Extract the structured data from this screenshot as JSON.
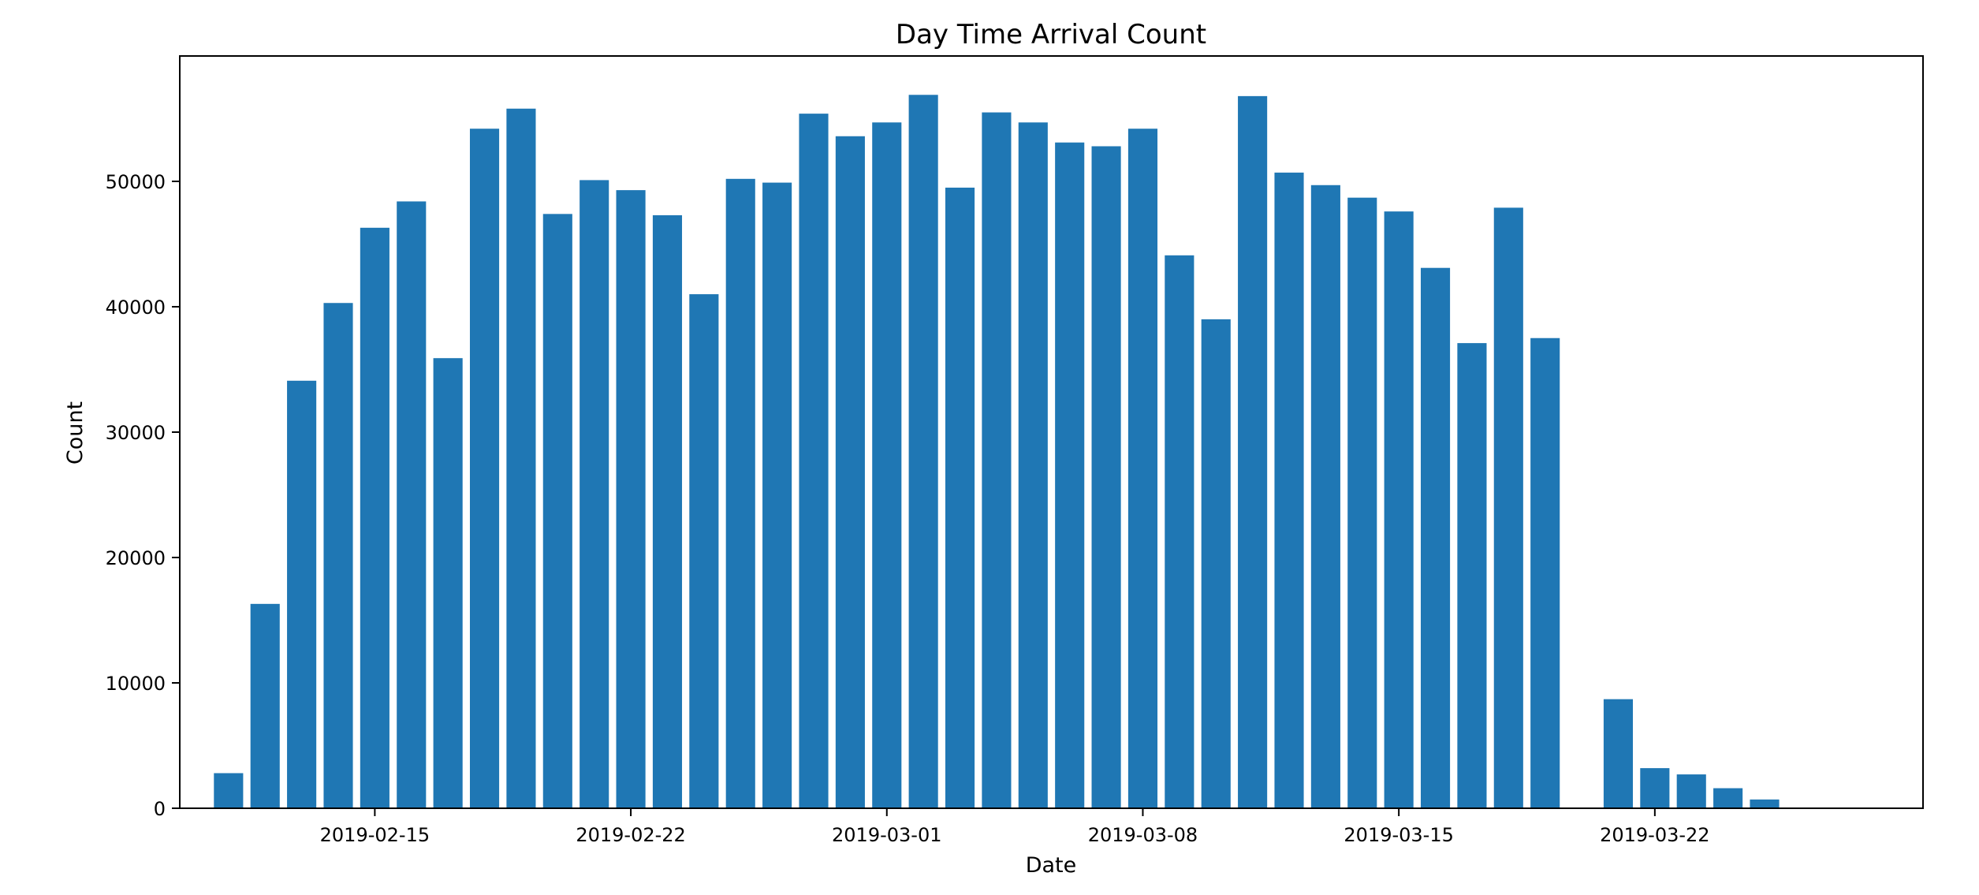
{
  "chart_data": {
    "type": "bar",
    "title": "Day Time Arrival Count",
    "xlabel": "Date",
    "ylabel": "Count",
    "bar_color": "#1f77b4",
    "ylim": [
      0,
      60000
    ],
    "xlim": [
      "2019-02-09T16:00",
      "2019-03-29T08:00"
    ],
    "grid": false,
    "x": [
      "2019-02-11",
      "2019-02-12",
      "2019-02-13",
      "2019-02-14",
      "2019-02-15",
      "2019-02-16",
      "2019-02-17",
      "2019-02-18",
      "2019-02-19",
      "2019-02-20",
      "2019-02-21",
      "2019-02-22",
      "2019-02-23",
      "2019-02-24",
      "2019-02-25",
      "2019-02-26",
      "2019-02-27",
      "2019-02-28",
      "2019-03-01",
      "2019-03-02",
      "2019-03-03",
      "2019-03-04",
      "2019-03-05",
      "2019-03-06",
      "2019-03-07",
      "2019-03-08",
      "2019-03-09",
      "2019-03-10",
      "2019-03-11",
      "2019-03-12",
      "2019-03-13",
      "2019-03-14",
      "2019-03-15",
      "2019-03-16",
      "2019-03-17",
      "2019-03-18",
      "2019-03-19",
      "2019-03-21",
      "2019-03-22",
      "2019-03-23",
      "2019-03-24",
      "2019-03-25"
    ],
    "values": [
      2800,
      16300,
      34100,
      40300,
      46300,
      48400,
      35900,
      54200,
      55800,
      47400,
      50100,
      49300,
      47300,
      41000,
      50200,
      49900,
      55400,
      53600,
      54700,
      56900,
      49500,
      55500,
      54700,
      53100,
      52800,
      54200,
      44100,
      39000,
      56800,
      50700,
      49700,
      48700,
      47600,
      43100,
      37100,
      47900,
      37500,
      8700,
      3200,
      2700,
      1600,
      700
    ],
    "x_ticks": [
      "2019-02-15",
      "2019-02-22",
      "2019-03-01",
      "2019-03-08",
      "2019-03-15",
      "2019-03-22"
    ],
    "y_ticks": [
      0,
      10000,
      20000,
      30000,
      40000,
      50000
    ],
    "y_tick_labels": [
      "0",
      "10000",
      "20000",
      "30000",
      "40000",
      "50000"
    ]
  }
}
